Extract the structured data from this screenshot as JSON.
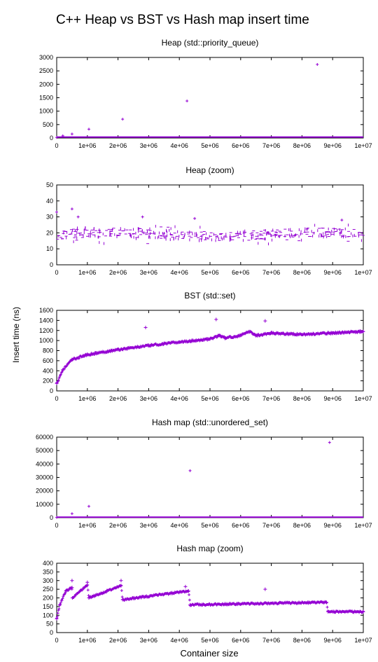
{
  "title": "C++ Heap vs BST vs Hash map insert time",
  "ylabel": "Insert time (ns)",
  "xlabel": "Container size",
  "colors": {
    "series": "#9400d3",
    "axis": "#000000"
  },
  "chart_data": [
    {
      "type": "scatter",
      "title": "Heap (std::priority_queue)",
      "xlim": [
        0,
        10000000
      ],
      "ylim": [
        0,
        3000
      ],
      "x_ticks": [
        "0",
        "1e+06",
        "2e+06",
        "3e+06",
        "4e+06",
        "5e+06",
        "6e+06",
        "7e+06",
        "8e+06",
        "9e+06",
        "1e+07"
      ],
      "y_ticks": [
        "0",
        "500",
        "1000",
        "1500",
        "2000",
        "2500",
        "3000"
      ],
      "series": [
        {
          "points": [
            [
              0,
              20
            ],
            [
              200000,
              80
            ],
            [
              500000,
              150
            ],
            [
              1050000,
              330
            ],
            [
              2150000,
              700
            ],
            [
              4250000,
              1380
            ],
            [
              8500000,
              2740
            ]
          ]
        }
      ],
      "baseline": {
        "y_range": [
          10,
          35
        ]
      }
    },
    {
      "type": "scatter",
      "title": "Heap (zoom)",
      "xlim": [
        0,
        10000000
      ],
      "ylim": [
        0,
        50
      ],
      "x_ticks": [
        "0",
        "1e+06",
        "2e+06",
        "3e+06",
        "4e+06",
        "5e+06",
        "6e+06",
        "7e+06",
        "8e+06",
        "9e+06",
        "1e+07"
      ],
      "y_ticks": [
        "0",
        "10",
        "20",
        "30",
        "40",
        "50"
      ],
      "series": [
        {
          "points": [
            [
              0,
              33
            ],
            [
              500000,
              35
            ],
            [
              700000,
              30
            ],
            [
              2800000,
              30
            ],
            [
              4500000,
              29
            ],
            [
              9300000,
              28
            ]
          ]
        }
      ],
      "band": {
        "center": 19,
        "spread": 3,
        "outlier_spread": 6
      }
    },
    {
      "type": "scatter",
      "title": "BST (std::set)",
      "xlim": [
        0,
        10000000
      ],
      "ylim": [
        0,
        1600
      ],
      "x_ticks": [
        "0",
        "1e+06",
        "2e+06",
        "3e+06",
        "4e+06",
        "5e+06",
        "6e+06",
        "7e+06",
        "8e+06",
        "9e+06",
        "1e+07"
      ],
      "y_ticks": [
        "0",
        "200",
        "400",
        "600",
        "800",
        "1000",
        "1200",
        "1400",
        "1600"
      ],
      "series": [
        {
          "points": [
            [
              0,
              150
            ],
            [
              200000,
              420
            ],
            [
              500000,
              620
            ],
            [
              1000000,
              720
            ],
            [
              2000000,
              820
            ],
            [
              3000000,
              900
            ],
            [
              4000000,
              970
            ],
            [
              5000000,
              1030
            ],
            [
              5300000,
              1100
            ],
            [
              5500000,
              1050
            ],
            [
              6000000,
              1100
            ],
            [
              6300000,
              1180
            ],
            [
              6500000,
              1100
            ],
            [
              7000000,
              1150
            ],
            [
              8000000,
              1120
            ],
            [
              9000000,
              1150
            ],
            [
              10000000,
              1180
            ],
            [
              5200000,
              1420
            ],
            [
              6800000,
              1390
            ],
            [
              2900000,
              1260
            ]
          ]
        }
      ]
    },
    {
      "type": "scatter",
      "title": "Hash map (std::unordered_set)",
      "xlim": [
        0,
        10000000
      ],
      "ylim": [
        0,
        60000
      ],
      "x_ticks": [
        "0",
        "1e+06",
        "2e+06",
        "3e+06",
        "4e+06",
        "5e+06",
        "6e+06",
        "7e+06",
        "8e+06",
        "9e+06",
        "1e+07"
      ],
      "y_ticks": [
        "0",
        "10000",
        "20000",
        "30000",
        "40000",
        "50000",
        "60000"
      ],
      "series": [
        {
          "points": [
            [
              0,
              200
            ],
            [
              500000,
              3000
            ],
            [
              1050000,
              8500
            ],
            [
              4350000,
              35000
            ],
            [
              8900000,
              56000
            ]
          ]
        }
      ],
      "baseline": {
        "y_range": [
          0,
          400
        ]
      }
    },
    {
      "type": "scatter",
      "title": "Hash map (zoom)",
      "xlim": [
        0,
        10000000
      ],
      "ylim": [
        0,
        400
      ],
      "x_ticks": [
        "0",
        "1e+06",
        "2e+06",
        "3e+06",
        "4e+06",
        "5e+06",
        "6e+06",
        "7e+06",
        "8e+06",
        "9e+06",
        "1e+07"
      ],
      "y_ticks": [
        "0",
        "50",
        "100",
        "150",
        "200",
        "250",
        "300",
        "350",
        "400"
      ],
      "series": [
        {
          "points": [
            [
              0,
              80
            ],
            [
              100000,
              160
            ],
            [
              300000,
              240
            ],
            [
              500000,
              260
            ],
            [
              510000,
              200
            ],
            [
              1000000,
              275
            ],
            [
              1050000,
              200
            ],
            [
              2100000,
              270
            ],
            [
              2150000,
              190
            ],
            [
              4300000,
              240
            ],
            [
              4350000,
              160
            ],
            [
              8800000,
              175
            ],
            [
              8850000,
              120
            ],
            [
              10000000,
              120
            ],
            [
              500000,
              300
            ],
            [
              1000000,
              290
            ],
            [
              2100000,
              300
            ],
            [
              4200000,
              265
            ],
            [
              6800000,
              250
            ]
          ]
        }
      ]
    }
  ]
}
